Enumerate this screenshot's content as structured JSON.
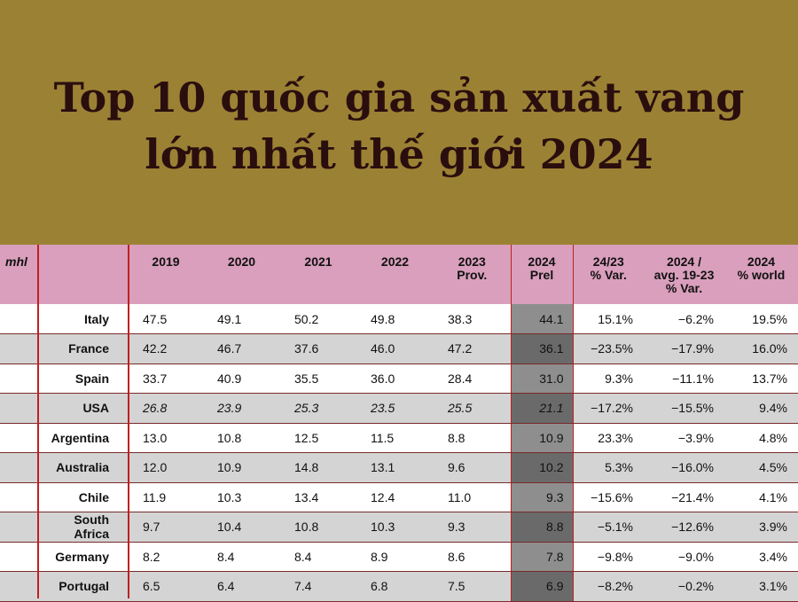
{
  "header": {
    "title_line1": "Top 10 quốc gia sản xuất vang",
    "title_line2": "lớn nhất thế giới 2024"
  },
  "colors": {
    "banner": "#9b8134",
    "table_header": "#d99fbc",
    "highlight_2024": "#8e8e8e",
    "rule": "#c02020"
  },
  "chart_data": {
    "type": "table",
    "unit": "mhl",
    "columns": [
      "2019",
      "2020",
      "2021",
      "2022",
      "2023\nProv.",
      "2024\nPrel",
      "24/23\n% Var.",
      "2024 /\navg. 19-23\n% Var.",
      "2024\n% world"
    ],
    "rows": [
      {
        "country": "Italy",
        "values": [
          "47.5",
          "49.1",
          "50.2",
          "49.8",
          "38.3",
          "44.1",
          "15.1%",
          "-6.2%",
          "19.5%"
        ]
      },
      {
        "country": "France",
        "values": [
          "42.2",
          "46.7",
          "37.6",
          "46.0",
          "47.2",
          "36.1",
          "-23.5%",
          "-17.9%",
          "16.0%"
        ]
      },
      {
        "country": "Spain",
        "values": [
          "33.7",
          "40.9",
          "35.5",
          "36.0",
          "28.4",
          "31.0",
          "9.3%",
          "-11.1%",
          "13.7%"
        ]
      },
      {
        "country": "USA",
        "values": [
          "26.8",
          "23.9",
          "25.3",
          "23.5",
          "25.5",
          "21.1",
          "-17.2%",
          "-15.5%",
          "9.4%"
        ],
        "italic": true
      },
      {
        "country": "Argentina",
        "values": [
          "13.0",
          "10.8",
          "12.5",
          "11.5",
          "8.8",
          "10.9",
          "23.3%",
          "-3.9%",
          "4.8%"
        ]
      },
      {
        "country": "Australia",
        "values": [
          "12.0",
          "10.9",
          "14.8",
          "13.1",
          "9.6",
          "10.2",
          "5.3%",
          "-16.0%",
          "4.5%"
        ]
      },
      {
        "country": "Chile",
        "values": [
          "11.9",
          "10.3",
          "13.4",
          "12.4",
          "11.0",
          "9.3",
          "-15.6%",
          "-21.4%",
          "4.1%"
        ]
      },
      {
        "country": "South Africa",
        "values": [
          "9.7",
          "10.4",
          "10.8",
          "10.3",
          "9.3",
          "8.8",
          "-5.1%",
          "-12.6%",
          "3.9%"
        ]
      },
      {
        "country": "Germany",
        "values": [
          "8.2",
          "8.4",
          "8.4",
          "8.9",
          "8.6",
          "7.8",
          "-9.8%",
          "-9.0%",
          "3.4%"
        ]
      },
      {
        "country": "Portugal",
        "values": [
          "6.5",
          "6.4",
          "7.4",
          "6.8",
          "7.5",
          "6.9",
          "-8.2%",
          "-0.2%",
          "3.1%"
        ]
      }
    ]
  }
}
